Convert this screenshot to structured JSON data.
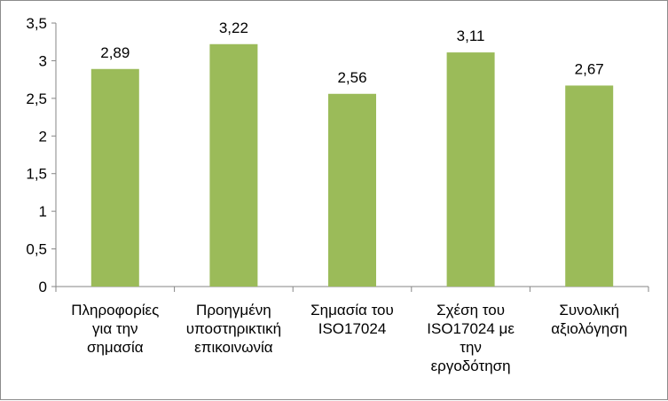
{
  "chart_data": {
    "type": "bar",
    "categories": [
      [
        "Πληροφορίες",
        "για την",
        "σημασία"
      ],
      [
        "Προηγμένη",
        "υποστηρικτική",
        "επικοινωνία"
      ],
      [
        "Σημασία του",
        "ISO17024"
      ],
      [
        "Σχέση του",
        "ISO17024 με",
        "την",
        "εργοδότηση"
      ],
      [
        "Συνολική",
        "αξιολόγηση"
      ]
    ],
    "values": [
      2.89,
      3.22,
      2.56,
      3.11,
      2.67
    ],
    "value_labels": [
      "2,89",
      "3,22",
      "2,56",
      "3,11",
      "2,67"
    ],
    "ylim": [
      0,
      3.5
    ],
    "yticks": [
      0,
      0.5,
      1,
      1.5,
      2,
      2.5,
      3,
      3.5
    ],
    "ytick_labels": [
      "0",
      "0,5",
      "1",
      "1,5",
      "2",
      "2,5",
      "3",
      "3,5"
    ],
    "bar_color": "#9bbb59",
    "grid": false,
    "legend": false
  }
}
